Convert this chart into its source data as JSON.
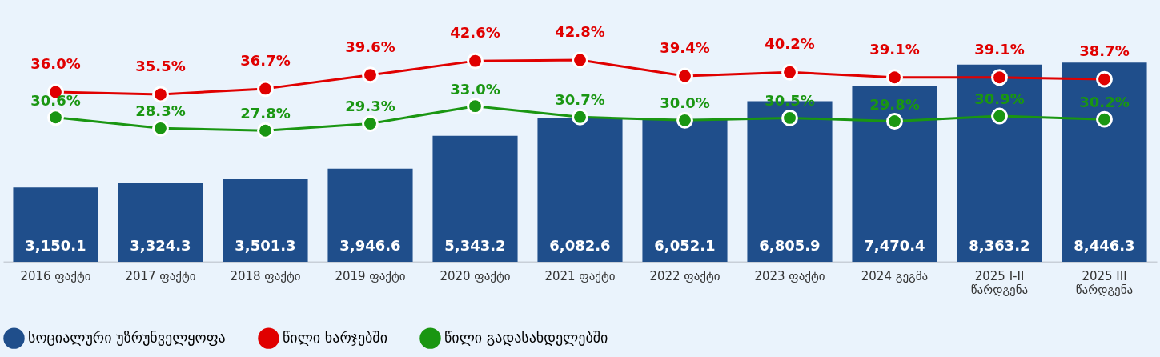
{
  "chart_data": {
    "type": "bar",
    "categories": [
      "2016 ფაქტი",
      "2017 ფაქტი",
      "2018 ფაქტი",
      "2019 ფაქტი",
      "2020 ფაქტი",
      "2021 ფაქტი",
      "2022 ფაქტი",
      "2023 ფაქტი",
      "2024 გეგმა",
      "2025 I-II წარდგენა",
      "2025 III წარდგენა"
    ],
    "series": [
      {
        "name": "სოციალური უზრუნველყოფა",
        "color": "#1f4e8b",
        "values": [
          3150.1,
          3324.3,
          3501.3,
          3946.6,
          5343.2,
          6082.6,
          6052.1,
          6805.9,
          7470.4,
          8363.2,
          8446.3
        ],
        "value_labels": [
          "3,150.1",
          "3,324.3",
          "3,501.3",
          "3,946.6",
          "5,343.2",
          "6,082.6",
          "6,052.1",
          "6,805.9",
          "7,470.4",
          "8,363.2",
          "8,446.3"
        ]
      },
      {
        "name": "წილი ხარჯებში",
        "type": "line",
        "axis": "y2",
        "color": "#e00000",
        "values": [
          36.0,
          35.5,
          36.7,
          39.6,
          42.6,
          42.8,
          39.4,
          40.2,
          39.1,
          39.1,
          38.7
        ],
        "value_labels": [
          "36.0%",
          "35.5%",
          "36.7%",
          "39.6%",
          "42.6%",
          "42.8%",
          "39.4%",
          "40.2%",
          "39.1%",
          "39.1%",
          "38.7%"
        ]
      },
      {
        "name": "წილი გადასახდელებში",
        "type": "line",
        "axis": "y2",
        "color": "#1a9612",
        "values": [
          30.6,
          28.3,
          27.8,
          29.3,
          33.0,
          30.7,
          30.0,
          30.5,
          29.8,
          30.9,
          30.2
        ],
        "value_labels": [
          "30.6%",
          "28.3%",
          "27.8%",
          "29.3%",
          "33.0%",
          "30.7%",
          "30.0%",
          "30.5%",
          "29.8%",
          "30.9%",
          "30.2%"
        ]
      }
    ],
    "tick_labels": "x",
    "grid": false,
    "legend": "bottom",
    "marker": "circle"
  }
}
